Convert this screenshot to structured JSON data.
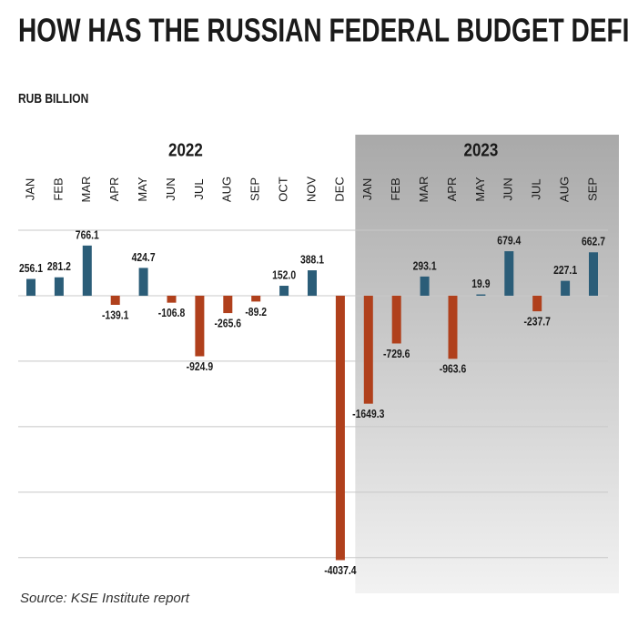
{
  "chart_data": {
    "type": "bar",
    "title": "HOW HAS THE RUSSIAN FEDERAL BUDGET DEFICIT CHANGED?",
    "subtitle": "RUB BILLION",
    "source": "Source: KSE Institute report",
    "positive_color": "#2b5d78",
    "negative_color": "#b0401c",
    "ylim": [
      -4100,
      1000
    ],
    "yticks": [
      1000,
      0,
      -1000,
      -2000,
      -3000,
      -4000
    ],
    "grid": true,
    "groups": [
      {
        "name": "2022",
        "shaded": false,
        "categories": [
          "JAN",
          "FEB",
          "MAR",
          "APR",
          "MAY",
          "JUN",
          "JUL",
          "AUG",
          "SEP",
          "OCT",
          "NOV",
          "DEC"
        ],
        "values": [
          256.1,
          281.2,
          766.1,
          -139.1,
          424.7,
          -106.8,
          -924.9,
          -265.6,
          -89.2,
          152,
          388.1,
          -4037.4
        ],
        "value_labels": [
          "256.1",
          "281.2",
          "766.1",
          "-139.1",
          "424.7",
          "-106.8",
          "-924.9",
          "-265.6",
          "-89.2",
          "152.0",
          "388.1",
          "-4037.4"
        ]
      },
      {
        "name": "2023",
        "shaded": true,
        "categories": [
          "JAN",
          "FEB",
          "MAR",
          "APR",
          "MAY",
          "JUN",
          "JUL",
          "AUG",
          "SEP"
        ],
        "values": [
          -1649.3,
          -729.6,
          293.1,
          -963.6,
          19.9,
          679.4,
          -237.7,
          227.1,
          662.7
        ],
        "value_labels": [
          "-1649.3",
          "-729.6",
          "293.1",
          "-963.6",
          "19.9",
          "679.4",
          "-237.7",
          "227.1",
          "662.7"
        ]
      }
    ]
  }
}
